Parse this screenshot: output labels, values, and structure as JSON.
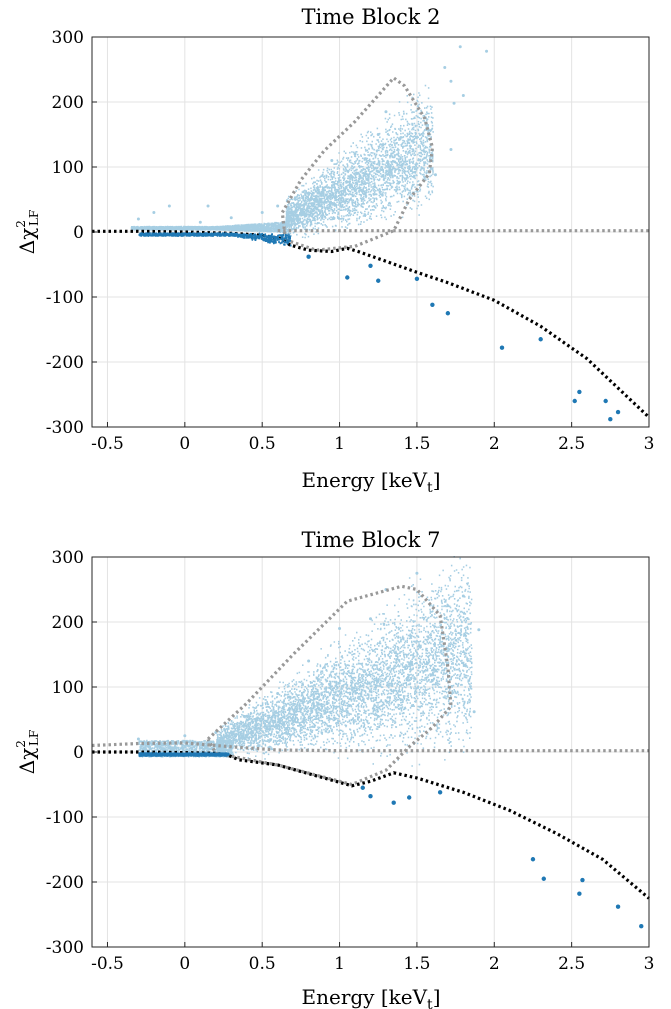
{
  "chart_data": [
    {
      "type": "scatter",
      "title": "Time Block 2",
      "xlabel": "Energy [keV",
      "xlabel_sub": "t",
      "xlabel_close": "]",
      "ylabel": "Δχ",
      "ylabel_sup": "2",
      "ylabel_sub": "LF",
      "xlim": [
        -0.6,
        3
      ],
      "ylim": [
        -300,
        300
      ],
      "xticks": [
        -0.5,
        0,
        0.5,
        1,
        1.5,
        2,
        2.5,
        3
      ],
      "xtick_labels": [
        "-0.5",
        "0",
        "0.5",
        "1",
        "1.5",
        "2",
        "2.5",
        "3"
      ],
      "yticks": [
        -300,
        -200,
        -100,
        0,
        100,
        200,
        300
      ],
      "ytick_labels": [
        "-300",
        "-200",
        "-100",
        "0",
        "100",
        "200",
        "300"
      ],
      "grid": true,
      "colors": {
        "light_points": "#a6cee3",
        "dark_points": "#1f78b4",
        "black_curve": "#000000",
        "gray_curve": "#999999"
      },
      "series": [
        {
          "style": "light-blue dense cloud",
          "points": [
            [
              1.78,
              285
            ],
            [
              1.95,
              278
            ],
            [
              1.68,
              253
            ],
            [
              1.72,
              232
            ],
            [
              1.8,
              210
            ],
            [
              1.74,
              198
            ],
            [
              1.72,
              127
            ],
            [
              1.62,
              88
            ],
            [
              1.3,
              185
            ],
            [
              1.25,
              150
            ],
            [
              1.1,
              120
            ],
            [
              0.95,
              110
            ],
            [
              0.8,
              60
            ],
            [
              0.6,
              40
            ],
            [
              0.5,
              30
            ],
            [
              0.3,
              22
            ],
            [
              0.1,
              15
            ],
            [
              -0.1,
              40
            ],
            [
              -0.2,
              30
            ],
            [
              -0.3,
              20
            ],
            [
              0.15,
              40
            ]
          ]
        },
        {
          "style": "dark-blue outliers",
          "points": [
            [
              0.8,
              -38
            ],
            [
              1.05,
              -70
            ],
            [
              1.2,
              -52
            ],
            [
              1.25,
              -75
            ],
            [
              1.5,
              -72
            ],
            [
              1.6,
              -112
            ],
            [
              1.7,
              -125
            ],
            [
              2.05,
              -178
            ],
            [
              2.3,
              -165
            ],
            [
              2.52,
              -260
            ],
            [
              2.55,
              -246
            ],
            [
              2.72,
              -260
            ],
            [
              2.75,
              -288
            ],
            [
              2.8,
              -277
            ]
          ]
        },
        {
          "style": "black dotted boundary",
          "points": [
            [
              -0.6,
              1
            ],
            [
              -0.3,
              1
            ],
            [
              0,
              0
            ],
            [
              0.3,
              -2
            ],
            [
              0.5,
              -5
            ],
            [
              0.62,
              -10
            ],
            [
              0.68,
              -20
            ],
            [
              0.8,
              -28
            ],
            [
              0.95,
              -30
            ],
            [
              1.05,
              -25
            ],
            [
              1.12,
              -30
            ],
            [
              1.3,
              -45
            ],
            [
              1.5,
              -62
            ],
            [
              1.7,
              -78
            ],
            [
              2,
              -105
            ],
            [
              2.3,
              -145
            ],
            [
              2.6,
              -195
            ],
            [
              3,
              -285
            ]
          ]
        },
        {
          "style": "gray dotted baseline",
          "points": [
            [
              0.6,
              2
            ],
            [
              3,
              2
            ]
          ]
        },
        {
          "style": "gray dotted region",
          "points": [
            [
              0.65,
              -12
            ],
            [
              0.63,
              30
            ],
            [
              0.75,
              80
            ],
            [
              0.9,
              125
            ],
            [
              1.1,
              170
            ],
            [
              1.35,
              237
            ],
            [
              1.42,
              225
            ],
            [
              1.55,
              175
            ],
            [
              1.6,
              130
            ],
            [
              1.58,
              90
            ],
            [
              1.45,
              50
            ],
            [
              1.35,
              2
            ],
            [
              1.1,
              -22
            ],
            [
              0.85,
              -28
            ],
            [
              0.65,
              -12
            ]
          ]
        }
      ]
    },
    {
      "type": "scatter",
      "title": "Time Block 7",
      "xlabel": "Energy [keV",
      "xlabel_sub": "t",
      "xlabel_close": "]",
      "ylabel": "Δχ",
      "ylabel_sup": "2",
      "ylabel_sub": "LF",
      "xlim": [
        -0.6,
        3
      ],
      "ylim": [
        -300,
        300
      ],
      "xticks": [
        -0.5,
        0,
        0.5,
        1,
        1.5,
        2,
        2.5,
        3
      ],
      "xtick_labels": [
        "-0.5",
        "0",
        "0.5",
        "1",
        "1.5",
        "2",
        "2.5",
        "3"
      ],
      "yticks": [
        -300,
        -200,
        -100,
        0,
        100,
        200,
        300
      ],
      "ytick_labels": [
        "-300",
        "-200",
        "-100",
        "0",
        "100",
        "200",
        "300"
      ],
      "grid": true,
      "colors": {
        "light_points": "#a6cee3",
        "dark_points": "#1f78b4",
        "black_curve": "#000000",
        "gray_curve": "#999999"
      },
      "series": [
        {
          "style": "light-blue dense cloud",
          "points": [
            [
              1.5,
              275
            ],
            [
              1.9,
              188
            ],
            [
              1.8,
              240
            ],
            [
              1.7,
              225
            ],
            [
              1.87,
              62
            ],
            [
              1.6,
              110
            ],
            [
              1.3,
              250
            ],
            [
              1.2,
              205
            ],
            [
              1.0,
              190
            ],
            [
              0.8,
              140
            ],
            [
              0.6,
              90
            ],
            [
              0.4,
              55
            ],
            [
              0.2,
              30
            ],
            [
              0.0,
              25
            ],
            [
              -0.3,
              20
            ],
            [
              0.3,
              30
            ]
          ]
        },
        {
          "style": "dark-blue outliers",
          "points": [
            [
              1.15,
              -55
            ],
            [
              1.2,
              -68
            ],
            [
              1.35,
              -78
            ],
            [
              1.45,
              -70
            ],
            [
              1.65,
              -62
            ],
            [
              2.25,
              -165
            ],
            [
              2.32,
              -195
            ],
            [
              2.55,
              -218
            ],
            [
              2.57,
              -197
            ],
            [
              2.8,
              -238
            ],
            [
              2.95,
              -268
            ]
          ]
        },
        {
          "style": "black dotted boundary",
          "points": [
            [
              -0.6,
              0
            ],
            [
              -0.3,
              0
            ],
            [
              0,
              -1
            ],
            [
              0.2,
              -2
            ],
            [
              0.28,
              -5
            ],
            [
              0.35,
              -12
            ],
            [
              0.6,
              -20
            ],
            [
              0.9,
              -40
            ],
            [
              1.08,
              -52
            ],
            [
              1.2,
              -45
            ],
            [
              1.35,
              -32
            ],
            [
              1.5,
              -40
            ],
            [
              1.8,
              -62
            ],
            [
              2.1,
              -90
            ],
            [
              2.4,
              -125
            ],
            [
              2.7,
              -165
            ],
            [
              3,
              -225
            ]
          ]
        },
        {
          "style": "gray dotted baseline",
          "points": [
            [
              -0.6,
              10
            ],
            [
              -0.3,
              13
            ],
            [
              0,
              14
            ],
            [
              0.3,
              8
            ],
            [
              0.6,
              3
            ],
            [
              1.0,
              2
            ],
            [
              3,
              2
            ]
          ]
        },
        {
          "style": "gray dotted region",
          "points": [
            [
              0.15,
              20
            ],
            [
              0.4,
              75
            ],
            [
              0.7,
              150
            ],
            [
              1.05,
              232
            ],
            [
              1.4,
              255
            ],
            [
              1.5,
              250
            ],
            [
              1.65,
              210
            ],
            [
              1.7,
              130
            ],
            [
              1.72,
              70
            ],
            [
              1.6,
              38
            ],
            [
              1.45,
              8
            ],
            [
              1.3,
              -28
            ],
            [
              1.08,
              -50
            ],
            [
              0.6,
              -20
            ],
            [
              0.2,
              -2
            ],
            [
              0.15,
              20
            ]
          ]
        }
      ]
    }
  ]
}
